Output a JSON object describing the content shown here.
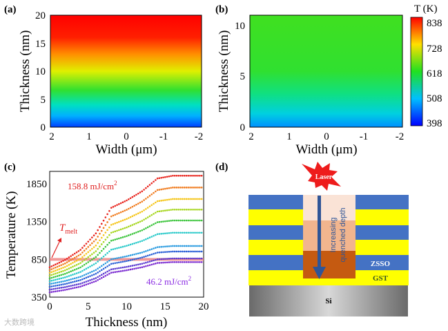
{
  "panels": {
    "a": {
      "label": "(a)",
      "xlabel": "Width (μm)",
      "ylabel": "Thickness (nm)",
      "xticks": [
        "2",
        "1",
        "0",
        "-1",
        "-2"
      ],
      "yticks": [
        "0",
        "5",
        "10",
        "15",
        "20"
      ]
    },
    "b": {
      "label": "(b)",
      "xlabel": "Width (μm)",
      "ylabel": "Thickness (nm)",
      "xticks": [
        "2",
        "1",
        "0",
        "-1",
        "-2"
      ],
      "yticks": [
        "0",
        "5",
        "10"
      ]
    },
    "colorbar": {
      "title": "T (K)",
      "ticks": [
        "838",
        "728",
        "618",
        "508",
        "398"
      ]
    },
    "c": {
      "label": "(c)",
      "annotation_high": "158.8 mJ/cm",
      "annotation_low": "46.2 mJ/cm",
      "superscript": "2",
      "tmelt_T": "T",
      "tmelt_sub": "melt"
    },
    "d": {
      "label": "(d)",
      "laser": "Laser",
      "arrow_text_1": "Increasing",
      "arrow_text_2": "quenched depth",
      "zsso": "ZSSO",
      "gst": "GST",
      "si": "Si",
      "colors": {
        "zsso": "#4472c4",
        "gst": "#ffff00",
        "light": "#fae3d6",
        "mid": "#f2b58e",
        "dark": "#c55a11"
      }
    }
  },
  "watermark": "大数跨境",
  "chart_data": [
    {
      "type": "heatmap",
      "panel": "a",
      "xlabel": "Width (μm)",
      "ylabel": "Thickness (nm)",
      "xlim": [
        2,
        -2
      ],
      "ylim": [
        0,
        20
      ],
      "color_range": [
        398,
        838
      ]
    },
    {
      "type": "heatmap",
      "panel": "b",
      "xlabel": "Width (μm)",
      "ylabel": "Thickness (nm)",
      "xlim": [
        2,
        -2
      ],
      "ylim": [
        0,
        11
      ],
      "color_range": [
        398,
        838
      ]
    },
    {
      "type": "scatter",
      "panel": "c",
      "xlabel": "Thickness (nm)",
      "ylabel": "Temperature (K)",
      "xlim": [
        0,
        20
      ],
      "ylim": [
        350,
        2000
      ],
      "xticks": [
        0,
        5,
        10,
        15,
        20
      ],
      "yticks": [
        350,
        850,
        1350,
        1850
      ],
      "tmelt": 850,
      "x": [
        0,
        2,
        4,
        6,
        8,
        10,
        12,
        14,
        16,
        18,
        20
      ],
      "series": [
        {
          "name": "158.8 mJ/cm2",
          "color": "#e8231c",
          "values": [
            746,
            843,
            976,
            1194,
            1533,
            1630,
            1751,
            1921,
            1957,
            1957,
            1957
          ]
        },
        {
          "name": "s2",
          "color": "#f07a1c",
          "values": [
            709,
            796,
            916,
            1113,
            1419,
            1506,
            1615,
            1768,
            1801,
            1801,
            1801
          ]
        },
        {
          "name": "s3",
          "color": "#f5c518",
          "values": [
            672,
            750,
            858,
            1034,
            1307,
            1385,
            1483,
            1620,
            1649,
            1649,
            1649
          ]
        },
        {
          "name": "s4",
          "color": "#a6d61e",
          "values": [
            635,
            705,
            801,
            958,
            1203,
            1273,
            1360,
            1483,
            1509,
            1509,
            1509
          ]
        },
        {
          "name": "s5",
          "color": "#3ac43a",
          "values": [
            598,
            659,
            744,
            882,
            1097,
            1158,
            1235,
            1342,
            1365,
            1365,
            1365
          ]
        },
        {
          "name": "s6",
          "color": "#28c9c9",
          "values": [
            561,
            612,
            683,
            799,
            978,
            1030,
            1094,
            1184,
            1203,
            1203,
            1203
          ]
        },
        {
          "name": "s7",
          "color": "#2a9be0",
          "values": [
            524,
            564,
            620,
            710,
            851,
            891,
            941,
            1012,
            1027,
            1027,
            1027
          ]
        },
        {
          "name": "s8",
          "color": "#2a5fd6",
          "values": [
            487,
            524,
            576,
            660,
            791,
            828,
            875,
            940,
            954,
            954,
            954
          ]
        },
        {
          "name": "s9",
          "color": "#5a3ad0",
          "values": [
            450,
            483,
            528,
            602,
            718,
            751,
            792,
            850,
            862,
            862,
            862
          ]
        },
        {
          "name": "46.2 mJ/cm2",
          "color": "#7a2ad0",
          "values": [
            414,
            446,
            490,
            562,
            674,
            706,
            746,
            802,
            814,
            814,
            814
          ]
        }
      ]
    }
  ]
}
